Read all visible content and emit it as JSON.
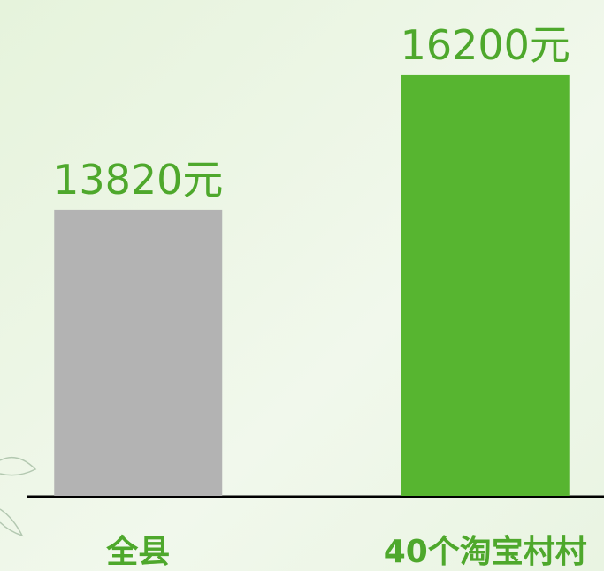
{
  "chart_data": {
    "type": "bar",
    "categories": [
      "全县",
      "40个淘宝村村"
    ],
    "values": [
      13820,
      16200
    ],
    "value_labels": [
      "13820元",
      "16200元"
    ],
    "colors": [
      "#b3b3b3",
      "#57b530"
    ],
    "label_color": "#4ea82c",
    "ylim": [
      8760,
      17530
    ]
  }
}
